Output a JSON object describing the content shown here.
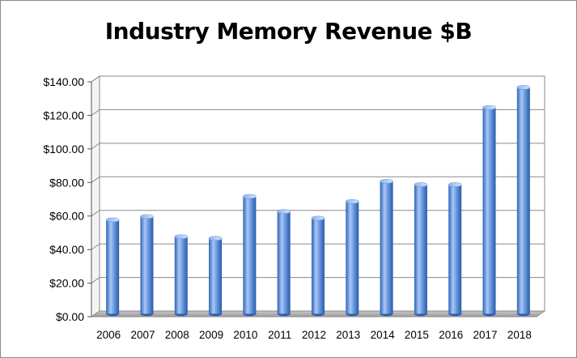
{
  "chart_data": {
    "type": "bar",
    "title": "Industry Memory Revenue $B",
    "xlabel": "",
    "ylabel": "",
    "categories": [
      "2006",
      "2007",
      "2008",
      "2009",
      "2010",
      "2011",
      "2012",
      "2013",
      "2014",
      "2015",
      "2016",
      "2017",
      "2018"
    ],
    "values": [
      56,
      58,
      46,
      45,
      70,
      61,
      57,
      67,
      79,
      77,
      77,
      123,
      135
    ],
    "ylim": [
      0,
      140
    ],
    "yticks": [
      0,
      20,
      40,
      60,
      80,
      100,
      120,
      140
    ],
    "ytick_labels": [
      "$0.00",
      "$20.00",
      "$40.00",
      "$60.00",
      "$80.00",
      "$100.00",
      "$120.00",
      "$140.00"
    ],
    "grid": true,
    "legend": "none",
    "style": "3d-cylinder",
    "bar_color": "#4a7fd0",
    "bar_highlight": "#a9c8f5"
  }
}
